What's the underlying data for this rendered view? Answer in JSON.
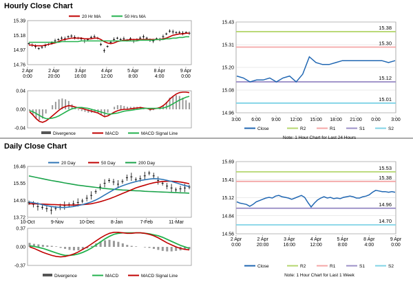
{
  "sections": {
    "hourly_title": "Hourly Close Chart",
    "daily_title": "Daily Close Chart"
  },
  "colors": {
    "close": "#1f66b2",
    "ma_short": "#c00000",
    "ma_long": "#22b14c",
    "ma_200": "#1aa34a",
    "ma_20d": "#2e75b6",
    "ma_50d": "#c00000",
    "macd": "#c00000",
    "signal": "#22b14c",
    "divergence": "#999999",
    "r2": "#b4d66e",
    "r1": "#f4a6a6",
    "s1": "#9b8fc7",
    "s2": "#7fd3e6",
    "candle": "#000000",
    "grid": "#cccccc"
  },
  "chart_data": [
    {
      "id": "hourly_price",
      "type": "line",
      "title": "Hourly Close Chart",
      "ylim": [
        14.76,
        15.39
      ],
      "yticks": [
        "15.39",
        "15.18",
        "14.97",
        "14.76"
      ],
      "xticks": [
        "2 Apr\n0:00",
        "2 Apr\n20:00",
        "3 Apr\n16:00",
        "4 Apr\n12:00",
        "5 Apr\n8:00",
        "8 Apr\n4:00",
        "9 Apr\n0:00"
      ],
      "legend": [
        "20 Hr MA",
        "50 Hrs MA"
      ],
      "close": [
        15.06,
        15.04,
        15.02,
        14.99,
        15.01,
        15.03,
        15.05,
        15.07,
        15.1,
        15.12,
        15.14,
        15.13,
        15.16,
        15.17,
        15.15,
        15.14,
        15.13,
        15.1,
        15.12,
        15.15,
        15.16,
        15.14,
        15.05,
        14.96,
        15.02,
        15.08,
        15.12,
        15.14,
        15.12,
        15.13,
        15.11,
        15.13,
        15.1,
        15.12,
        15.14,
        15.16,
        15.14,
        15.11,
        15.1,
        15.13,
        15.12,
        15.16,
        15.2,
        15.24,
        15.23,
        15.22,
        15.22,
        15.21,
        15.22,
        15.21
      ],
      "ma20": [
        15.04,
        15.04,
        15.03,
        15.03,
        15.03,
        15.04,
        15.05,
        15.06,
        15.07,
        15.09,
        15.11,
        15.12,
        15.13,
        15.14,
        15.14,
        15.14,
        15.14,
        15.13,
        15.13,
        15.13,
        15.14,
        15.14,
        15.12,
        15.09,
        15.07,
        15.06,
        15.07,
        15.09,
        15.1,
        15.11,
        15.11,
        15.12,
        15.12,
        15.12,
        15.12,
        15.12,
        15.12,
        15.12,
        15.12,
        15.12,
        15.12,
        15.13,
        15.14,
        15.16,
        15.18,
        15.19,
        15.2,
        15.2,
        15.21,
        15.21
      ],
      "ma50": [
        15.08,
        15.08,
        15.08,
        15.08,
        15.08,
        15.08,
        15.08,
        15.08,
        15.08,
        15.08,
        15.09,
        15.09,
        15.09,
        15.09,
        15.09,
        15.09,
        15.1,
        15.1,
        15.1,
        15.1,
        15.1,
        15.1,
        15.1,
        15.1,
        15.1,
        15.1,
        15.1,
        15.1,
        15.1,
        15.1,
        15.1,
        15.1,
        15.1,
        15.1,
        15.11,
        15.11,
        15.11,
        15.11,
        15.11,
        15.12,
        15.12,
        15.12,
        15.13,
        15.13,
        15.14,
        15.14,
        15.15,
        15.15,
        15.16,
        15.16
      ]
    },
    {
      "id": "hourly_macd",
      "type": "line",
      "ylim": [
        -0.04,
        0.04
      ],
      "yticks": [
        "0.04",
        "0.00",
        "-0.04"
      ],
      "legend": [
        "Divergence",
        "MACD",
        "MACD Signal Line"
      ],
      "macd": [
        -0.005,
        -0.012,
        -0.02,
        -0.026,
        -0.028,
        -0.025,
        -0.02,
        -0.014,
        -0.008,
        -0.002,
        0.003,
        0.006,
        0.008,
        0.007,
        0.005,
        0.003,
        0.002,
        0.0,
        -0.002,
        -0.004,
        -0.006,
        -0.008,
        -0.012,
        -0.016,
        -0.014,
        -0.01,
        -0.006,
        -0.003,
        -0.001,
        0.0,
        0.0,
        0.001,
        0.002,
        0.003,
        0.004,
        0.003,
        0.002,
        0.0,
        0.001,
        0.002,
        0.004,
        0.008,
        0.014,
        0.022,
        0.028,
        0.033,
        0.036,
        0.037,
        0.037,
        0.036
      ],
      "signal": [
        -0.003,
        -0.005,
        -0.009,
        -0.013,
        -0.017,
        -0.02,
        -0.02,
        -0.019,
        -0.017,
        -0.014,
        -0.01,
        -0.006,
        -0.002,
        0.001,
        0.003,
        0.004,
        0.004,
        0.003,
        0.002,
        0.0,
        -0.002,
        -0.004,
        -0.006,
        -0.008,
        -0.01,
        -0.01,
        -0.009,
        -0.008,
        -0.006,
        -0.004,
        -0.003,
        -0.002,
        -0.001,
        0.0,
        0.001,
        0.002,
        0.002,
        0.002,
        0.002,
        0.002,
        0.002,
        0.003,
        0.005,
        0.008,
        0.012,
        0.016,
        0.02,
        0.023,
        0.026,
        0.028
      ],
      "divergence": [
        -0.002,
        -0.007,
        -0.011,
        -0.013,
        -0.011,
        -0.005,
        0.0,
        0.005,
        0.009,
        0.012,
        0.013,
        0.012,
        0.01,
        0.006,
        0.002,
        -0.001,
        -0.002,
        -0.003,
        -0.004,
        -0.004,
        -0.004,
        -0.004,
        -0.006,
        -0.008,
        -0.004,
        0.0,
        0.003,
        0.005,
        0.005,
        0.004,
        0.003,
        0.003,
        0.003,
        0.003,
        0.003,
        0.001,
        0.0,
        -0.002,
        -0.001,
        0.0,
        0.002,
        0.005,
        0.009,
        0.014,
        0.016,
        0.017,
        0.016,
        0.014,
        0.011,
        0.008
      ]
    },
    {
      "id": "hourly_pivot",
      "type": "line",
      "ylim": [
        14.96,
        15.43
      ],
      "yticks": [
        "15.43",
        "15.31",
        "15.20",
        "15.08",
        "14.96"
      ],
      "xticks": [
        "3:00",
        "6:00",
        "9:00",
        "12:00",
        "15:00",
        "18:00",
        "21:00",
        "0:00",
        "3:00"
      ],
      "legend": [
        "Close",
        "R2",
        "R1",
        "S1",
        "S2"
      ],
      "note": "Note: 1 Hour Chart for Last 24 Hours",
      "levels": {
        "R2": 15.38,
        "R1": 15.3,
        "S1": 15.12,
        "S2": 15.01
      },
      "level_labels": {
        "R2": "15.38",
        "R1": "15.30",
        "S1": "15.12",
        "S2": "15.01"
      },
      "close": [
        15.15,
        15.14,
        15.12,
        15.13,
        15.13,
        15.14,
        15.12,
        15.14,
        15.15,
        15.12,
        15.16,
        15.25,
        15.22,
        15.21,
        15.21,
        15.22,
        15.23,
        15.23,
        15.23,
        15.23,
        15.23,
        15.23,
        15.23,
        15.22,
        15.23
      ]
    },
    {
      "id": "daily_price",
      "type": "line",
      "title": "Daily Close Chart",
      "ylim": [
        13.72,
        16.46
      ],
      "yticks": [
        "16.46",
        "15.55",
        "14.63",
        "13.72"
      ],
      "xticks": [
        "10-Oct",
        "9-Nov",
        "10-Dec",
        "8-Jan",
        "7-Feb",
        "11-Mar"
      ],
      "legend": [
        "20 Day",
        "50 Day",
        "200 Day"
      ],
      "close": [
        14.5,
        14.42,
        14.3,
        14.25,
        14.18,
        14.1,
        14.2,
        14.28,
        14.35,
        14.4,
        14.45,
        14.52,
        14.6,
        14.75,
        14.9,
        15.1,
        15.35,
        15.55,
        15.7,
        15.62,
        15.5,
        15.65,
        15.85,
        15.9,
        15.75,
        15.8,
        15.95,
        16.1,
        15.95,
        15.7,
        15.55,
        15.4,
        15.3,
        15.2,
        15.25,
        15.3,
        15.35
      ],
      "ma20": [
        14.55,
        14.5,
        14.46,
        14.4,
        14.35,
        14.3,
        14.27,
        14.25,
        14.25,
        14.27,
        14.3,
        14.35,
        14.4,
        14.47,
        14.55,
        14.65,
        14.78,
        14.92,
        15.06,
        15.2,
        15.32,
        15.42,
        15.5,
        15.58,
        15.64,
        15.7,
        15.74,
        15.78,
        15.8,
        15.79,
        15.76,
        15.71,
        15.65,
        15.58,
        15.5,
        15.43,
        15.38
      ],
      "ma50": [
        14.45,
        14.45,
        14.44,
        14.43,
        14.42,
        14.41,
        14.4,
        14.39,
        14.38,
        14.38,
        14.38,
        14.39,
        14.4,
        14.42,
        14.45,
        14.5,
        14.56,
        14.63,
        14.71,
        14.8,
        14.9,
        15.0,
        15.1,
        15.2,
        15.3,
        15.38,
        15.45,
        15.52,
        15.58,
        15.62,
        15.65,
        15.66,
        15.66,
        15.65,
        15.62,
        15.58,
        15.53
      ],
      "ma200": [
        15.95,
        15.9,
        15.85,
        15.8,
        15.75,
        15.7,
        15.66,
        15.62,
        15.57,
        15.53,
        15.49,
        15.45,
        15.42,
        15.39,
        15.36,
        15.33,
        15.3,
        15.27,
        15.25,
        15.23,
        15.21,
        15.19,
        15.18,
        15.16,
        15.15,
        15.14,
        15.12,
        15.11,
        15.1,
        15.09,
        15.08,
        15.07,
        15.06,
        15.05,
        15.04,
        15.03,
        15.02
      ]
    },
    {
      "id": "daily_macd",
      "type": "line",
      "ylim": [
        -0.37,
        0.37
      ],
      "yticks": [
        "0.37",
        "0.00",
        "-0.37"
      ],
      "legend": [
        "Divergence",
        "MACD",
        "MACD Signal Line"
      ],
      "macd": [
        0.0,
        -0.03,
        -0.07,
        -0.11,
        -0.14,
        -0.17,
        -0.19,
        -0.2,
        -0.19,
        -0.17,
        -0.14,
        -0.1,
        -0.05,
        0.0,
        0.06,
        0.12,
        0.18,
        0.23,
        0.27,
        0.29,
        0.29,
        0.28,
        0.27,
        0.27,
        0.28,
        0.28,
        0.27,
        0.25,
        0.22,
        0.18,
        0.13,
        0.08,
        0.04,
        0.0,
        -0.03,
        -0.05,
        -0.06
      ],
      "signal": [
        0.02,
        0.01,
        -0.01,
        -0.03,
        -0.06,
        -0.09,
        -0.12,
        -0.15,
        -0.17,
        -0.17,
        -0.16,
        -0.14,
        -0.11,
        -0.07,
        -0.02,
        0.04,
        0.1,
        0.16,
        0.21,
        0.25,
        0.27,
        0.28,
        0.28,
        0.28,
        0.28,
        0.28,
        0.27,
        0.26,
        0.24,
        0.22,
        0.19,
        0.15,
        0.11,
        0.07,
        0.03,
        0.0,
        -0.03
      ],
      "divergence": [
        0.08,
        0.06,
        0.05,
        0.04,
        0.03,
        0.02,
        0.01,
        -0.02,
        -0.04,
        -0.06,
        -0.07,
        -0.07,
        -0.06,
        -0.03,
        0.02,
        0.07,
        0.11,
        0.13,
        0.14,
        0.12,
        0.1,
        0.07,
        0.04,
        0.02,
        0.01,
        0.0,
        -0.01,
        -0.02,
        -0.04,
        -0.06,
        -0.08,
        -0.09,
        -0.09,
        -0.08,
        -0.07,
        -0.06,
        -0.05
      ]
    },
    {
      "id": "daily_pivot",
      "type": "line",
      "ylim": [
        14.56,
        15.69
      ],
      "yticks": [
        "15.69",
        "15.41",
        "15.12",
        "14.84",
        "14.56"
      ],
      "xticks": [
        "2 Apr\n0:00",
        "2 Apr\n20:00",
        "3 Apr\n16:00",
        "4 Apr\n12:00",
        "5 Apr\n8:00",
        "8 Apr\n4:00",
        "9 Apr\n0:00"
      ],
      "legend": [
        "Close",
        "R2",
        "R1",
        "S1",
        "S2"
      ],
      "note": "Note: 1 Hour Chart for Last 1 Week",
      "levels": {
        "R2": 15.53,
        "R1": 15.38,
        "S1": 14.96,
        "S2": 14.7
      },
      "level_labels": {
        "R2": "15.53",
        "R1": "15.38",
        "S1": "14.96",
        "S2": "14.70"
      },
      "close": [
        15.06,
        15.04,
        15.03,
        15.02,
        14.99,
        15.02,
        15.06,
        15.08,
        15.1,
        15.12,
        15.13,
        15.12,
        15.15,
        15.16,
        15.14,
        15.13,
        15.12,
        15.1,
        15.12,
        15.14,
        15.16,
        15.13,
        15.05,
        14.98,
        15.04,
        15.09,
        15.12,
        15.14,
        15.12,
        15.13,
        15.11,
        15.12,
        15.11,
        15.13,
        15.14,
        15.15,
        15.14,
        15.12,
        15.12,
        15.14,
        15.15,
        15.17,
        15.21,
        15.24,
        15.23,
        15.22,
        15.22,
        15.21,
        15.22,
        15.21
      ]
    }
  ]
}
